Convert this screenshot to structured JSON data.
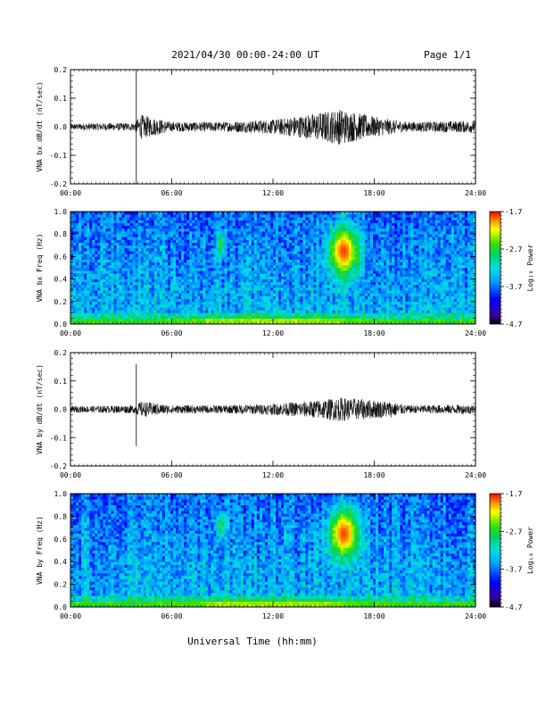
{
  "header": {
    "date_range": "2021/04/30  00:00-24:00 UT",
    "page": "Page 1/1"
  },
  "footer": {
    "xlabel": "Universal Time (hh:mm)"
  },
  "colorbar": {
    "title": "Log₁₀ Power",
    "ticks": [
      "-1.7",
      "-2.7",
      "-3.7",
      "-4.7"
    ]
  },
  "chart_data": [
    {
      "type": "line",
      "ylabel": "VNA bx dB/dt (nT/sec)",
      "x_ticks": [
        "00:00",
        "06:00",
        "12:00",
        "18:00",
        "24:00"
      ],
      "y_ticks": [
        "0.2",
        "0.1",
        "0.0",
        "-0.1",
        "-0.2"
      ],
      "xlim_hours": [
        0,
        24
      ],
      "ylim": [
        -0.2,
        0.2
      ],
      "spike": {
        "time_hours": 3.9,
        "max": 0.2,
        "min": -0.2
      },
      "envelope": [
        {
          "time_hours": 0,
          "amplitude": 0.008
        },
        {
          "time_hours": 3.8,
          "amplitude": 0.01
        },
        {
          "time_hours": 4.2,
          "amplitude": 0.03
        },
        {
          "time_hours": 6,
          "amplitude": 0.012
        },
        {
          "time_hours": 9,
          "amplitude": 0.012
        },
        {
          "time_hours": 12,
          "amplitude": 0.018
        },
        {
          "time_hours": 14,
          "amplitude": 0.03
        },
        {
          "time_hours": 16,
          "amplitude": 0.045
        },
        {
          "time_hours": 18,
          "amplitude": 0.025
        },
        {
          "time_hours": 20,
          "amplitude": 0.012
        },
        {
          "time_hours": 24,
          "amplitude": 0.015
        }
      ]
    },
    {
      "type": "heatmap",
      "ylabel": "VNA bx Freq (Hz)",
      "x_ticks": [
        "00:00",
        "06:00",
        "12:00",
        "18:00",
        "24:00"
      ],
      "y_ticks": [
        "1.0",
        "0.8",
        "0.6",
        "0.4",
        "0.2",
        "0.0"
      ],
      "xlim_hours": [
        0,
        24
      ],
      "ylim_hz": [
        0,
        1.0
      ],
      "color_range_log10": [
        -4.7,
        -1.7
      ],
      "features": [
        {
          "time_hours": 16.2,
          "freq_hz": 0.65,
          "log_power": -1.8
        },
        {
          "time_hours": 8.9,
          "freq_hz": 0.72,
          "log_power": -2.6
        },
        {
          "time_hours": 12,
          "freq_hz": 0.02,
          "log_power": -2.4
        }
      ]
    },
    {
      "type": "line",
      "ylabel": "VNA by dB/dt (nT/sec)",
      "x_ticks": [
        "00:00",
        "06:00",
        "12:00",
        "18:00",
        "24:00"
      ],
      "y_ticks": [
        "0.2",
        "0.1",
        "0.0",
        "-0.1",
        "-0.2"
      ],
      "xlim_hours": [
        0,
        24
      ],
      "ylim": [
        -0.2,
        0.2
      ],
      "spike": {
        "time_hours": 3.9,
        "max": 0.16,
        "min": -0.13
      },
      "envelope": [
        {
          "time_hours": 0,
          "amplitude": 0.008
        },
        {
          "time_hours": 3.8,
          "amplitude": 0.01
        },
        {
          "time_hours": 4.2,
          "amplitude": 0.02
        },
        {
          "time_hours": 6,
          "amplitude": 0.01
        },
        {
          "time_hours": 9,
          "amplitude": 0.01
        },
        {
          "time_hours": 12,
          "amplitude": 0.014
        },
        {
          "time_hours": 14,
          "amplitude": 0.02
        },
        {
          "time_hours": 16,
          "amplitude": 0.03
        },
        {
          "time_hours": 19,
          "amplitude": 0.02
        },
        {
          "time_hours": 20,
          "amplitude": 0.01
        },
        {
          "time_hours": 24,
          "amplitude": 0.012
        }
      ]
    },
    {
      "type": "heatmap",
      "ylabel": "VNA by Freq (Hz)",
      "x_ticks": [
        "00:00",
        "06:00",
        "12:00",
        "18:00",
        "24:00"
      ],
      "y_ticks": [
        "1.0",
        "0.8",
        "0.6",
        "0.4",
        "0.2",
        "0.0"
      ],
      "xlim_hours": [
        0,
        24
      ],
      "ylim_hz": [
        0,
        1.0
      ],
      "color_range_log10": [
        -4.7,
        -1.7
      ],
      "features": [
        {
          "time_hours": 16.2,
          "freq_hz": 0.65,
          "log_power": -1.8
        },
        {
          "time_hours": 8.9,
          "freq_hz": 0.72,
          "log_power": -2.6
        },
        {
          "time_hours": 12,
          "freq_hz": 0.02,
          "log_power": -2.4
        }
      ]
    }
  ]
}
